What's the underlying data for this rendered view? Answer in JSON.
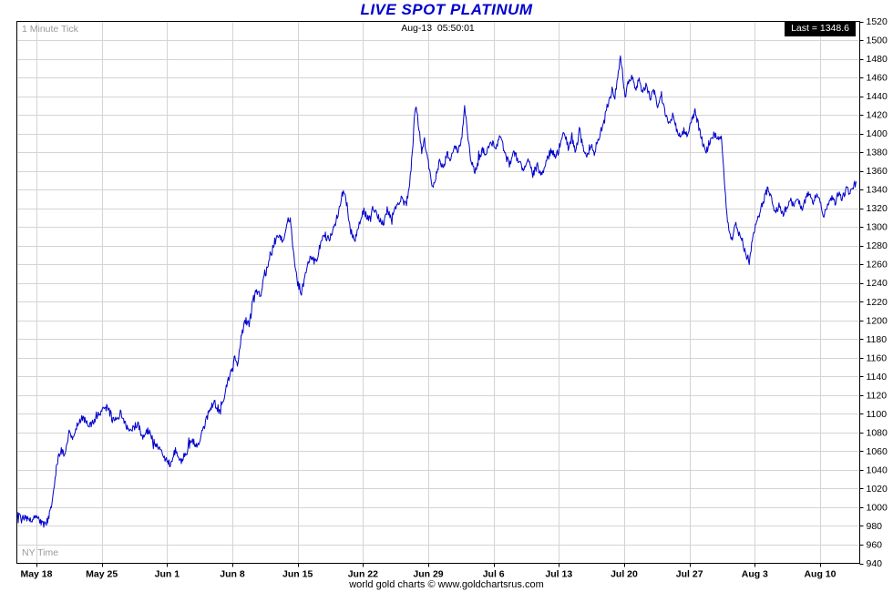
{
  "page": {
    "title": "LIVE SPOT PLATINUM"
  },
  "header": {
    "tick_interval": "1 Minute Tick",
    "timestamp": "Aug-13  05:50:01",
    "last_label": "Last = 1348.6",
    "last_value": 1348.6
  },
  "footer": {
    "timezone_label": "NY Time",
    "credit": "world gold charts © www.goldchartsrus.com"
  },
  "chart_data": {
    "type": "line",
    "title": "LIVE SPOT PLATINUM",
    "subtitle": "1 Minute Tick",
    "legend_position": "none",
    "grid": true,
    "grid_color": "#d4d4d4",
    "background": "#ffffff",
    "border_color": "#000000",
    "last": 1348.6,
    "noise_amplitude": 4.2,
    "y_axis": {
      "domain": [
        940,
        1520
      ],
      "tick_step": 20,
      "side": "right"
    },
    "x_axis": {
      "unit": "days since May 18",
      "domain": [
        -2.1,
        88.25
      ],
      "tick_days": [
        0,
        7,
        14,
        21,
        28,
        35,
        42,
        49,
        56,
        63,
        70,
        77,
        84
      ],
      "tick_labels": [
        "May 18",
        "May 25",
        "Jun 1",
        "Jun 8",
        "Jun 15",
        "Jun 22",
        "Jun 29",
        "Jul 6",
        "Jul 13",
        "Jul 20",
        "Jul 27",
        "Aug 3",
        "Aug 10"
      ]
    },
    "series": [
      {
        "name": "Platinum spot price (1 minute tick)",
        "color": "#0000cc",
        "keypoints": [
          [
            -2.1,
            992
          ],
          [
            -1.6,
            987
          ],
          [
            -1.1,
            990
          ],
          [
            -0.6,
            984
          ],
          [
            0,
            990
          ],
          [
            0.5,
            983
          ],
          [
            1.0,
            980
          ],
          [
            1.4,
            992
          ],
          [
            1.8,
            1012
          ],
          [
            2.2,
            1048
          ],
          [
            2.6,
            1062
          ],
          [
            3.0,
            1054
          ],
          [
            3.5,
            1082
          ],
          [
            4.0,
            1074
          ],
          [
            4.5,
            1092
          ],
          [
            5.0,
            1097
          ],
          [
            5.6,
            1085
          ],
          [
            6.2,
            1094
          ],
          [
            7.0,
            1104
          ],
          [
            7.6,
            1108
          ],
          [
            8.2,
            1093
          ],
          [
            9.0,
            1100
          ],
          [
            9.6,
            1087
          ],
          [
            10.2,
            1081
          ],
          [
            10.8,
            1090
          ],
          [
            11.4,
            1076
          ],
          [
            12.0,
            1082
          ],
          [
            12.6,
            1070
          ],
          [
            13.2,
            1061
          ],
          [
            14.0,
            1050
          ],
          [
            14.4,
            1046
          ],
          [
            14.9,
            1062
          ],
          [
            15.4,
            1050
          ],
          [
            16.0,
            1056
          ],
          [
            16.6,
            1072
          ],
          [
            17.2,
            1065
          ],
          [
            17.8,
            1082
          ],
          [
            18.4,
            1100
          ],
          [
            19.0,
            1112
          ],
          [
            19.6,
            1104
          ],
          [
            20.2,
            1122
          ],
          [
            20.7,
            1142
          ],
          [
            21.2,
            1160
          ],
          [
            21.6,
            1154
          ],
          [
            22.0,
            1185
          ],
          [
            22.4,
            1200
          ],
          [
            22.8,
            1194
          ],
          [
            23.2,
            1222
          ],
          [
            23.6,
            1232
          ],
          [
            24.0,
            1225
          ],
          [
            24.4,
            1245
          ],
          [
            24.9,
            1262
          ],
          [
            25.4,
            1280
          ],
          [
            25.9,
            1292
          ],
          [
            26.4,
            1284
          ],
          [
            26.9,
            1305
          ],
          [
            27.2,
            1310
          ],
          [
            27.6,
            1268
          ],
          [
            28.0,
            1240
          ],
          [
            28.4,
            1231
          ],
          [
            28.9,
            1252
          ],
          [
            29.4,
            1270
          ],
          [
            29.9,
            1261
          ],
          [
            30.4,
            1280
          ],
          [
            30.9,
            1292
          ],
          [
            31.4,
            1285
          ],
          [
            31.9,
            1300
          ],
          [
            32.4,
            1318
          ],
          [
            32.9,
            1340
          ],
          [
            33.3,
            1322
          ],
          [
            33.7,
            1295
          ],
          [
            34.1,
            1285
          ],
          [
            34.6,
            1304
          ],
          [
            35.1,
            1318
          ],
          [
            35.6,
            1307
          ],
          [
            36.1,
            1320
          ],
          [
            36.6,
            1312
          ],
          [
            37.1,
            1304
          ],
          [
            37.6,
            1318
          ],
          [
            38.1,
            1310
          ],
          [
            38.6,
            1322
          ],
          [
            39.1,
            1330
          ],
          [
            39.6,
            1323
          ],
          [
            40.0,
            1345
          ],
          [
            40.3,
            1380
          ],
          [
            40.5,
            1415
          ],
          [
            40.7,
            1432
          ],
          [
            41.0,
            1405
          ],
          [
            41.3,
            1382
          ],
          [
            41.6,
            1392
          ],
          [
            42.0,
            1370
          ],
          [
            42.4,
            1342
          ],
          [
            42.8,
            1352
          ],
          [
            43.2,
            1370
          ],
          [
            43.6,
            1361
          ],
          [
            44.0,
            1378
          ],
          [
            44.4,
            1371
          ],
          [
            44.8,
            1388
          ],
          [
            45.2,
            1380
          ],
          [
            45.6,
            1398
          ],
          [
            45.9,
            1428
          ],
          [
            46.2,
            1400
          ],
          [
            46.6,
            1370
          ],
          [
            47.0,
            1357
          ],
          [
            47.4,
            1372
          ],
          [
            47.8,
            1384
          ],
          [
            48.2,
            1377
          ],
          [
            48.7,
            1392
          ],
          [
            49.2,
            1384
          ],
          [
            49.7,
            1398
          ],
          [
            50.2,
            1378
          ],
          [
            50.7,
            1367
          ],
          [
            51.2,
            1380
          ],
          [
            51.7,
            1371
          ],
          [
            52.2,
            1361
          ],
          [
            52.7,
            1372
          ],
          [
            53.2,
            1357
          ],
          [
            53.7,
            1365
          ],
          [
            54.2,
            1355
          ],
          [
            54.7,
            1372
          ],
          [
            55.2,
            1382
          ],
          [
            55.7,
            1374
          ],
          [
            56.2,
            1390
          ],
          [
            56.6,
            1401
          ],
          [
            57.0,
            1384
          ],
          [
            57.4,
            1395
          ],
          [
            57.8,
            1379
          ],
          [
            58.2,
            1404
          ],
          [
            58.6,
            1384
          ],
          [
            59.0,
            1374
          ],
          [
            59.4,
            1388
          ],
          [
            59.8,
            1379
          ],
          [
            60.2,
            1394
          ],
          [
            60.6,
            1404
          ],
          [
            60.9,
            1420
          ],
          [
            61.3,
            1432
          ],
          [
            61.7,
            1446
          ],
          [
            62.0,
            1438
          ],
          [
            62.3,
            1462
          ],
          [
            62.6,
            1481
          ],
          [
            62.8,
            1468
          ],
          [
            63.1,
            1440
          ],
          [
            63.4,
            1452
          ],
          [
            63.8,
            1462
          ],
          [
            64.2,
            1446
          ],
          [
            64.6,
            1458
          ],
          [
            65.0,
            1443
          ],
          [
            65.4,
            1452
          ],
          [
            65.8,
            1437
          ],
          [
            66.2,
            1446
          ],
          [
            66.6,
            1430
          ],
          [
            67.0,
            1440
          ],
          [
            67.4,
            1422
          ],
          [
            67.8,
            1411
          ],
          [
            68.2,
            1420
          ],
          [
            68.6,
            1405
          ],
          [
            69.0,
            1395
          ],
          [
            69.4,
            1404
          ],
          [
            69.8,
            1397
          ],
          [
            70.2,
            1412
          ],
          [
            70.6,
            1424
          ],
          [
            71.0,
            1407
          ],
          [
            71.4,
            1391
          ],
          [
            71.8,
            1381
          ],
          [
            72.2,
            1392
          ],
          [
            72.6,
            1400
          ],
          [
            73.0,
            1393
          ],
          [
            73.4,
            1399
          ],
          [
            73.6,
            1372
          ],
          [
            73.8,
            1340
          ],
          [
            74.0,
            1312
          ],
          [
            74.3,
            1295
          ],
          [
            74.6,
            1284
          ],
          [
            74.9,
            1306
          ],
          [
            75.2,
            1296
          ],
          [
            75.6,
            1288
          ],
          [
            76.0,
            1272
          ],
          [
            76.4,
            1263
          ],
          [
            76.8,
            1290
          ],
          [
            77.2,
            1306
          ],
          [
            77.6,
            1318
          ],
          [
            78.0,
            1330
          ],
          [
            78.4,
            1342
          ],
          [
            78.8,
            1328
          ],
          [
            79.2,
            1316
          ],
          [
            79.6,
            1323
          ],
          [
            80.0,
            1313
          ],
          [
            80.4,
            1320
          ],
          [
            80.8,
            1330
          ],
          [
            81.2,
            1322
          ],
          [
            81.6,
            1333
          ],
          [
            82.0,
            1319
          ],
          [
            82.4,
            1329
          ],
          [
            82.8,
            1336
          ],
          [
            83.2,
            1324
          ],
          [
            83.6,
            1334
          ],
          [
            84.0,
            1328
          ],
          [
            84.4,
            1312
          ],
          [
            84.8,
            1322
          ],
          [
            85.2,
            1332
          ],
          [
            85.6,
            1326
          ],
          [
            86.0,
            1336
          ],
          [
            86.4,
            1330
          ],
          [
            86.8,
            1340
          ],
          [
            87.2,
            1337
          ],
          [
            87.5,
            1343
          ],
          [
            87.9,
            1348.6
          ]
        ]
      }
    ]
  }
}
